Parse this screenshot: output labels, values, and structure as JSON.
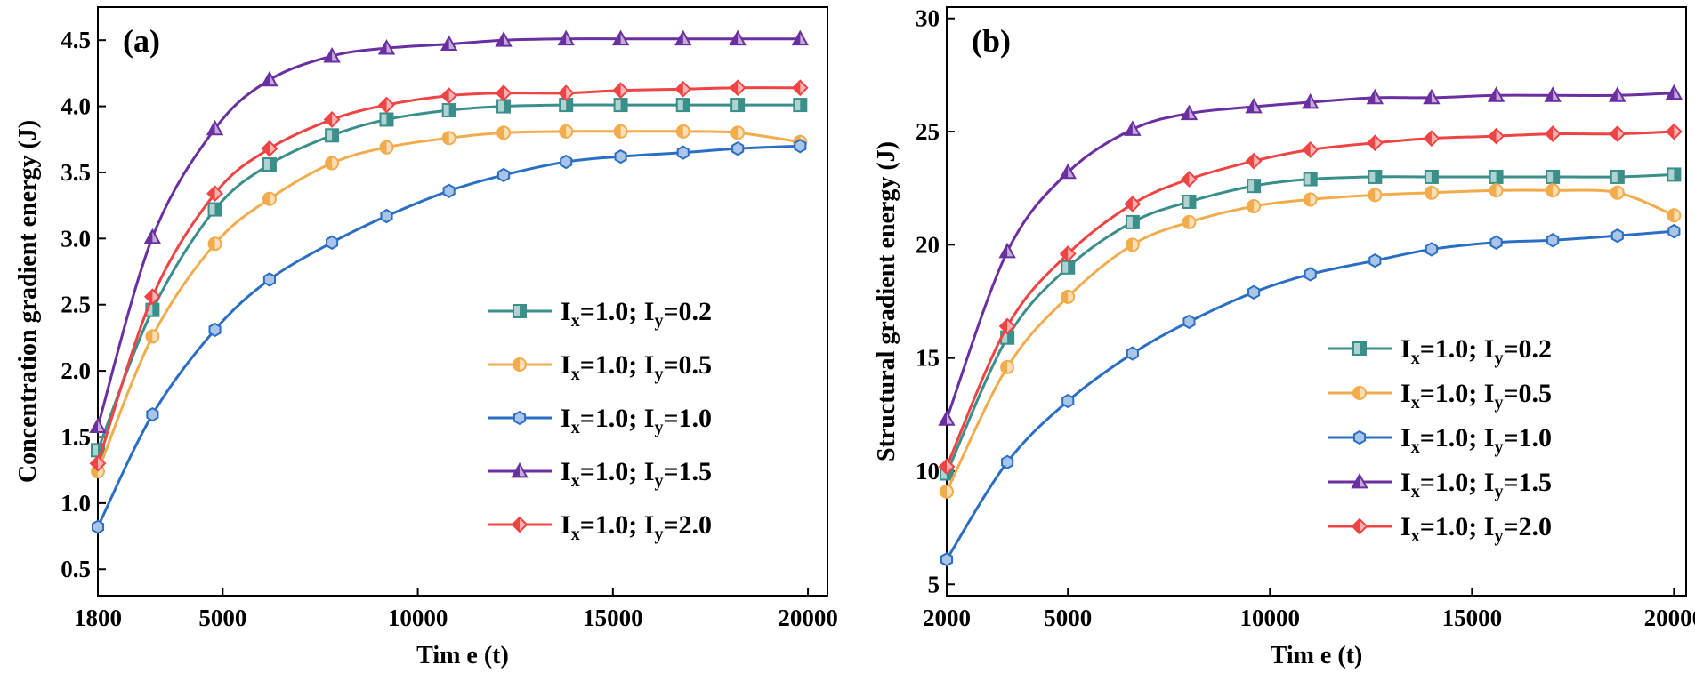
{
  "chart_data": [
    {
      "type": "line",
      "panel_label": "(a)",
      "xlabel": "Tim e (t)",
      "ylabel": "Concentration gradient energy (J)",
      "xlim": [
        1800,
        20500
      ],
      "ylim": [
        0.3,
        4.75
      ],
      "xticks": [
        1800,
        5000,
        10000,
        15000,
        20000
      ],
      "yticks": [
        0.5,
        1.0,
        1.5,
        2.0,
        2.5,
        3.0,
        3.5,
        4.0,
        4.5
      ],
      "legend_position": "center-right",
      "series": [
        {
          "name": "Iy=0.2",
          "label": {
            "main1": "I",
            "sub1": "x",
            "main2": "=1.0; I",
            "sub2": "y",
            "main3": "=0.2"
          },
          "color": "#3a8f8a",
          "marker": "square",
          "x": [
            1800,
            3200,
            4800,
            6200,
            7800,
            9200,
            10800,
            12200,
            13800,
            15200,
            16800,
            18200,
            19800
          ],
          "y": [
            1.4,
            2.46,
            3.22,
            3.56,
            3.78,
            3.9,
            3.97,
            4.0,
            4.01,
            4.01,
            4.01,
            4.01,
            4.01
          ]
        },
        {
          "name": "Iy=0.5",
          "label": {
            "main1": "I",
            "sub1": "x",
            "main2": "=1.0; I",
            "sub2": "y",
            "main3": "=0.5"
          },
          "color": "#f2ac4c",
          "marker": "circle",
          "x": [
            1800,
            3200,
            4800,
            6200,
            7800,
            9200,
            10800,
            12200,
            13800,
            15200,
            16800,
            18200,
            19800
          ],
          "y": [
            1.24,
            2.26,
            2.96,
            3.3,
            3.57,
            3.69,
            3.76,
            3.8,
            3.81,
            3.81,
            3.81,
            3.8,
            3.73
          ]
        },
        {
          "name": "Iy=1.0",
          "label": {
            "main1": "I",
            "sub1": "x",
            "main2": "=1.0; I",
            "sub2": "y",
            "main3": "=1.0"
          },
          "color": "#2a6fc4",
          "marker": "hexagon",
          "x": [
            1800,
            3200,
            4800,
            6200,
            7800,
            9200,
            10800,
            12200,
            13800,
            15200,
            16800,
            18200,
            19800
          ],
          "y": [
            0.82,
            1.67,
            2.31,
            2.69,
            2.97,
            3.17,
            3.36,
            3.48,
            3.58,
            3.62,
            3.65,
            3.68,
            3.7
          ]
        },
        {
          "name": "Iy=1.5",
          "label": {
            "main1": "I",
            "sub1": "x",
            "main2": "=1.0; I",
            "sub2": "y",
            "main3": "=1.5"
          },
          "color": "#6a2fa0",
          "marker": "triangle",
          "x": [
            1800,
            3200,
            4800,
            6200,
            7800,
            9200,
            10800,
            12200,
            13800,
            15200,
            16800,
            18200,
            19800
          ],
          "y": [
            1.58,
            3.01,
            3.83,
            4.2,
            4.38,
            4.44,
            4.47,
            4.5,
            4.51,
            4.51,
            4.51,
            4.51,
            4.51
          ]
        },
        {
          "name": "Iy=2.0",
          "label": {
            "main1": "I",
            "sub1": "x",
            "main2": "=1.0; I",
            "sub2": "y",
            "main3": "=2.0"
          },
          "color": "#ee4444",
          "marker": "diamond",
          "x": [
            1800,
            3200,
            4800,
            6200,
            7800,
            9200,
            10800,
            12200,
            13800,
            15200,
            16800,
            18200,
            19800
          ],
          "y": [
            1.3,
            2.56,
            3.34,
            3.68,
            3.9,
            4.01,
            4.08,
            4.1,
            4.1,
            4.12,
            4.13,
            4.14,
            4.14
          ]
        }
      ]
    },
    {
      "type": "line",
      "panel_label": "(b)",
      "xlabel": "Tim e (t)",
      "ylabel": "Structural gradient energy (J)",
      "xlim": [
        2000,
        20300
      ],
      "ylim": [
        4.5,
        30.5
      ],
      "xticks": [
        2000,
        5000,
        10000,
        15000,
        20000
      ],
      "yticks": [
        5,
        10,
        15,
        20,
        25,
        30
      ],
      "legend_position": "lower-right",
      "series": [
        {
          "name": "Iy=0.2",
          "label": {
            "main1": "I",
            "sub1": "x",
            "main2": "=1.0; I",
            "sub2": "y",
            "main3": "=0.2"
          },
          "color": "#3a8f8a",
          "marker": "square",
          "x": [
            2000,
            3500,
            5000,
            6600,
            8000,
            9600,
            11000,
            12600,
            14000,
            15600,
            17000,
            18600,
            20000
          ],
          "y": [
            9.9,
            15.9,
            19.0,
            21.0,
            21.9,
            22.6,
            22.9,
            23.0,
            23.0,
            23.0,
            23.0,
            23.0,
            23.1
          ]
        },
        {
          "name": "Iy=0.5",
          "label": {
            "main1": "I",
            "sub1": "x",
            "main2": "=1.0; I",
            "sub2": "y",
            "main3": "=0.5"
          },
          "color": "#f2ac4c",
          "marker": "circle",
          "x": [
            2000,
            3500,
            5000,
            6600,
            8000,
            9600,
            11000,
            12600,
            14000,
            15600,
            17000,
            18600,
            20000
          ],
          "y": [
            9.1,
            14.6,
            17.7,
            20.0,
            21.0,
            21.7,
            22.0,
            22.2,
            22.3,
            22.4,
            22.4,
            22.3,
            21.3
          ]
        },
        {
          "name": "Iy=1.0",
          "label": {
            "main1": "I",
            "sub1": "x",
            "main2": "=1.0; I",
            "sub2": "y",
            "main3": "=1.0"
          },
          "color": "#2a6fc4",
          "marker": "hexagon",
          "x": [
            2000,
            3500,
            5000,
            6600,
            8000,
            9600,
            11000,
            12600,
            14000,
            15600,
            17000,
            18600,
            20000
          ],
          "y": [
            6.1,
            10.4,
            13.1,
            15.2,
            16.6,
            17.9,
            18.7,
            19.3,
            19.8,
            20.1,
            20.2,
            20.4,
            20.6
          ]
        },
        {
          "name": "Iy=1.5",
          "label": {
            "main1": "I",
            "sub1": "x",
            "main2": "=1.0; I",
            "sub2": "y",
            "main3": "=1.5"
          },
          "color": "#6a2fa0",
          "marker": "triangle",
          "x": [
            2000,
            3500,
            5000,
            6600,
            8000,
            9600,
            11000,
            12600,
            14000,
            15600,
            17000,
            18600,
            20000
          ],
          "y": [
            12.3,
            19.7,
            23.2,
            25.1,
            25.8,
            26.1,
            26.3,
            26.5,
            26.5,
            26.6,
            26.6,
            26.6,
            26.7
          ]
        },
        {
          "name": "Iy=2.0",
          "label": {
            "main1": "I",
            "sub1": "x",
            "main2": "=1.0; I",
            "sub2": "y",
            "main3": "=2.0"
          },
          "color": "#ee4444",
          "marker": "diamond",
          "x": [
            2000,
            3500,
            5000,
            6600,
            8000,
            9600,
            11000,
            12600,
            14000,
            15600,
            17000,
            18600,
            20000
          ],
          "y": [
            10.2,
            16.4,
            19.6,
            21.8,
            22.9,
            23.7,
            24.2,
            24.5,
            24.7,
            24.8,
            24.9,
            24.9,
            25.0
          ]
        }
      ]
    }
  ]
}
